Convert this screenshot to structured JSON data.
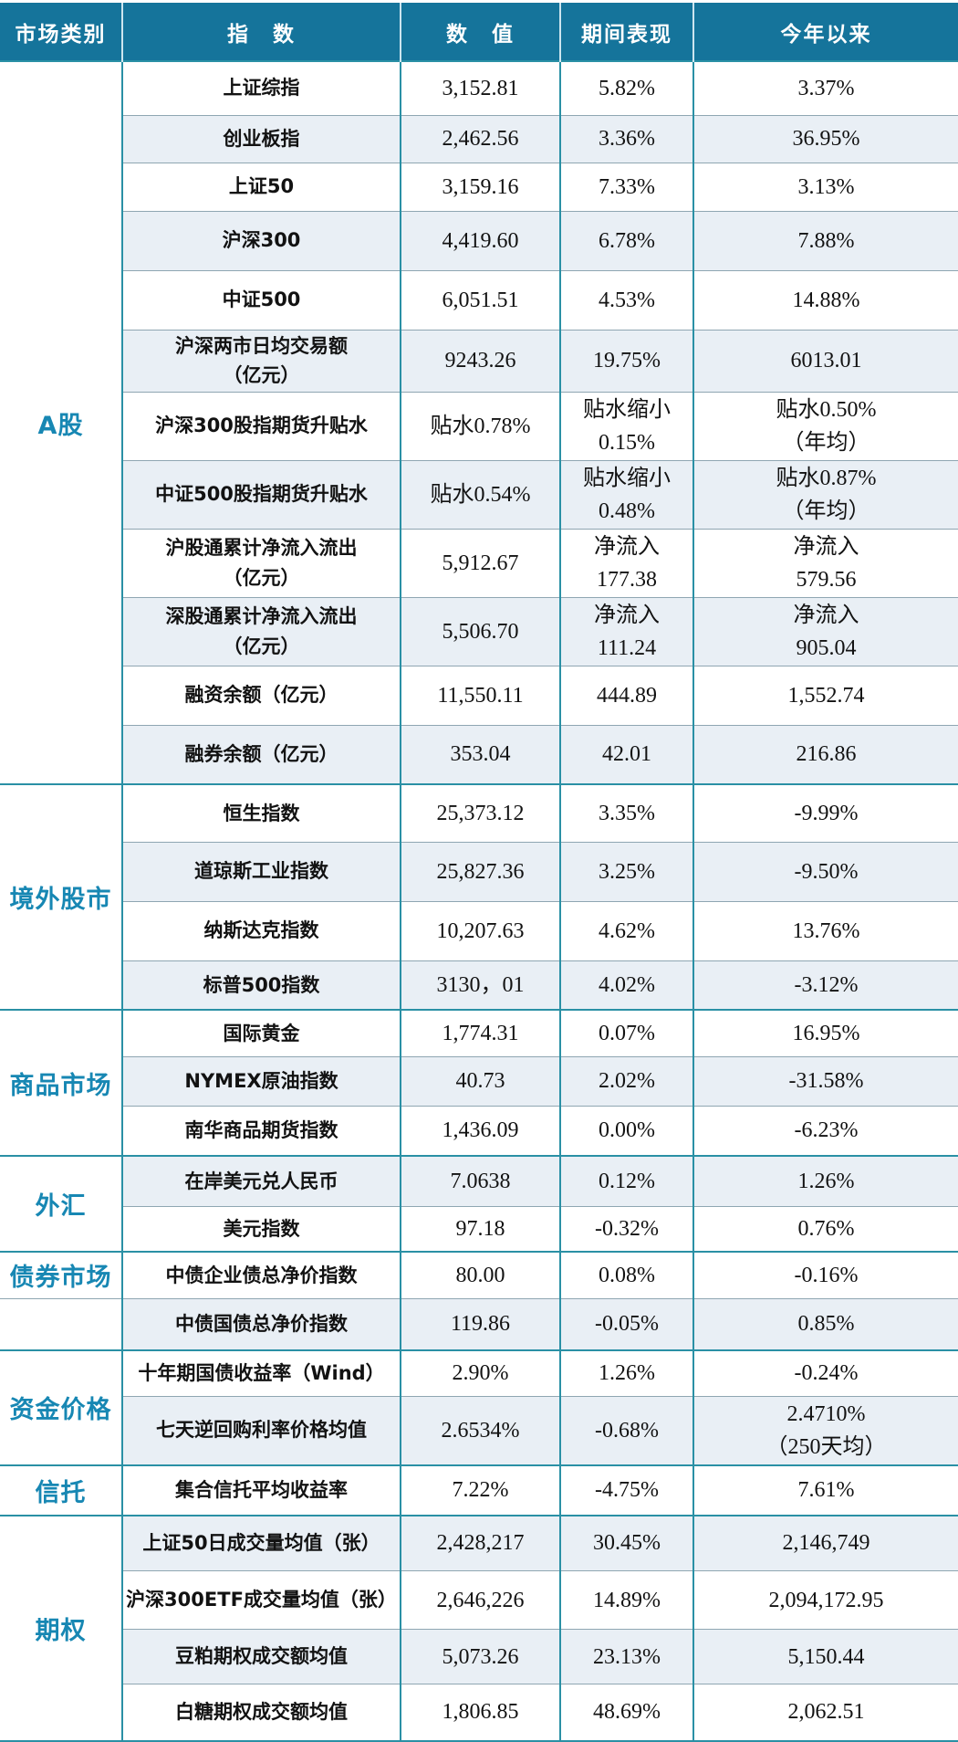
{
  "header": {
    "category": "市场类别",
    "index": "指　数",
    "value": "数　值",
    "period": "期间表现",
    "ytd": "今年以来"
  },
  "colors": {
    "header_bg": "#15749b",
    "accent_line": "#2a90a5",
    "category_text": "#1787b3",
    "shaded_row_bg": "#e9eff5",
    "row_separator": "#8fa6b2",
    "header_text": "#ffffff",
    "cell_text": "#121212"
  },
  "sections": [
    {
      "category": "A股",
      "rows": [
        {
          "index": "上证综指",
          "value": "3,152.81",
          "period": "5.82%",
          "ytd": "3.37%"
        },
        {
          "index": "创业板指",
          "value": "2,462.56",
          "period": "3.36%",
          "ytd": "36.95%"
        },
        {
          "index": "上证50",
          "value": "3,159.16",
          "period": "7.33%",
          "ytd": "3.13%"
        },
        {
          "index": "沪深300",
          "value": "4,419.60",
          "period": "6.78%",
          "ytd": "7.88%"
        },
        {
          "index": "中证500",
          "value": "6,051.51",
          "period": "4.53%",
          "ytd": "14.88%"
        },
        {
          "index": "沪深两市日均交易额\n（亿元）",
          "value": "9243.26",
          "period": "19.75%",
          "ytd": "6013.01"
        },
        {
          "index": "沪深300股指期货升贴水",
          "value": "贴水0.78%",
          "period": "贴水缩小\n0.15%",
          "ytd": "贴水0.50%\n（年均）"
        },
        {
          "index": "中证500股指期货升贴水",
          "value": "贴水0.54%",
          "period": "贴水缩小\n0.48%",
          "ytd": "贴水0.87%\n（年均）"
        },
        {
          "index": "沪股通累计净流入流出\n（亿元）",
          "value": "5,912.67",
          "period": "净流入\n177.38",
          "ytd": "净流入\n579.56"
        },
        {
          "index": "深股通累计净流入流出\n（亿元）",
          "value": "5,506.70",
          "period": "净流入\n111.24",
          "ytd": "净流入\n905.04"
        },
        {
          "index": "融资余额（亿元）",
          "value": "11,550.11",
          "period": "444.89",
          "ytd": "1,552.74"
        },
        {
          "index": "融券余额（亿元）",
          "value": "353.04",
          "period": "42.01",
          "ytd": "216.86"
        }
      ]
    },
    {
      "category": "境外股市",
      "rows": [
        {
          "index": "恒生指数",
          "value": "25,373.12",
          "period": "3.35%",
          "ytd": "-9.99%"
        },
        {
          "index": "道琼斯工业指数",
          "value": "25,827.36",
          "period": "3.25%",
          "ytd": "-9.50%"
        },
        {
          "index": "纳斯达克指数",
          "value": "10,207.63",
          "period": "4.62%",
          "ytd": "13.76%"
        },
        {
          "index": "标普500指数",
          "value": "3130，01",
          "period": "4.02%",
          "ytd": "-3.12%"
        }
      ]
    },
    {
      "category": "商品市场",
      "rows": [
        {
          "index": "国际黄金",
          "value": "1,774.31",
          "period": "0.07%",
          "ytd": "16.95%"
        },
        {
          "index": "NYMEX原油指数",
          "value": "40.73",
          "period": "2.02%",
          "ytd": "-31.58%"
        },
        {
          "index": "南华商品期货指数",
          "value": "1,436.09",
          "period": "0.00%",
          "ytd": "-6.23%"
        }
      ]
    },
    {
      "category": "外汇",
      "rows": [
        {
          "index": "在岸美元兑人民币",
          "value": "7.0638",
          "period": "0.12%",
          "ytd": "1.26%"
        },
        {
          "index": "美元指数",
          "value": "97.18",
          "period": "-0.32%",
          "ytd": "0.76%"
        }
      ]
    },
    {
      "category": "债券市场",
      "split_category": true,
      "rows": [
        {
          "index": "中债企业债总净价指数",
          "value": "80.00",
          "period": "0.08%",
          "ytd": "-0.16%"
        },
        {
          "index": "中债国债总净价指数",
          "value": "119.86",
          "period": "-0.05%",
          "ytd": "0.85%"
        }
      ]
    },
    {
      "category": "资金价格",
      "rows": [
        {
          "index": "十年期国债收益率（Wind）",
          "value": "2.90%",
          "period": "1.26%",
          "ytd": "-0.24%"
        },
        {
          "index": "七天逆回购利率价格均值",
          "value": "2.6534%",
          "period": "-0.68%",
          "ytd": "2.4710%\n（250天均）"
        }
      ]
    },
    {
      "category": "信托",
      "rows": [
        {
          "index": "集合信托平均收益率",
          "value": "7.22%",
          "period": "-4.75%",
          "ytd": "7.61%"
        }
      ]
    },
    {
      "category": "期权",
      "rows": [
        {
          "index": "上证50日成交量均值（张）",
          "value": "2,428,217",
          "period": "30.45%",
          "ytd": "2,146,749"
        },
        {
          "index": "沪深300ETF成交量均值（张）",
          "value": "2,646,226",
          "period": "14.89%",
          "ytd": "2,094,172.95"
        },
        {
          "index": "豆粕期权成交额均值",
          "value": "5,073.26",
          "period": "23.13%",
          "ytd": "5,150.44"
        },
        {
          "index": "白糖期权成交额均值",
          "value": "1,806.85",
          "period": "48.69%",
          "ytd": "2,062.51"
        }
      ]
    }
  ],
  "chart_data": {
    "type": "table",
    "title": "",
    "columns": [
      "市场类别",
      "指　数",
      "数　值",
      "期间表现",
      "今年以来"
    ],
    "rows": [
      [
        "A股",
        "上证综指",
        "3,152.81",
        "5.82%",
        "3.37%"
      ],
      [
        "A股",
        "创业板指",
        "2,462.56",
        "3.36%",
        "36.95%"
      ],
      [
        "A股",
        "上证50",
        "3,159.16",
        "7.33%",
        "3.13%"
      ],
      [
        "A股",
        "沪深300",
        "4,419.60",
        "6.78%",
        "7.88%"
      ],
      [
        "A股",
        "中证500",
        "6,051.51",
        "4.53%",
        "14.88%"
      ],
      [
        "A股",
        "沪深两市日均交易额（亿元）",
        "9243.26",
        "19.75%",
        "6013.01"
      ],
      [
        "A股",
        "沪深300股指期货升贴水",
        "贴水0.78%",
        "贴水缩小 0.15%",
        "贴水0.50%（年均）"
      ],
      [
        "A股",
        "中证500股指期货升贴水",
        "贴水0.54%",
        "贴水缩小 0.48%",
        "贴水0.87%（年均）"
      ],
      [
        "A股",
        "沪股通累计净流入流出（亿元）",
        "5,912.67",
        "净流入 177.38",
        "净流入 579.56"
      ],
      [
        "A股",
        "深股通累计净流入流出（亿元）",
        "5,506.70",
        "净流入 111.24",
        "净流入 905.04"
      ],
      [
        "A股",
        "融资余额（亿元）",
        "11,550.11",
        "444.89",
        "1,552.74"
      ],
      [
        "A股",
        "融券余额（亿元）",
        "353.04",
        "42.01",
        "216.86"
      ],
      [
        "境外股市",
        "恒生指数",
        "25,373.12",
        "3.35%",
        "-9.99%"
      ],
      [
        "境外股市",
        "道琼斯工业指数",
        "25,827.36",
        "3.25%",
        "-9.50%"
      ],
      [
        "境外股市",
        "纳斯达克指数",
        "10,207.63",
        "4.62%",
        "13.76%"
      ],
      [
        "境外股市",
        "标普500指数",
        "3130，01",
        "4.02%",
        "-3.12%"
      ],
      [
        "商品市场",
        "国际黄金",
        "1,774.31",
        "0.07%",
        "16.95%"
      ],
      [
        "商品市场",
        "NYMEX原油指数",
        "40.73",
        "2.02%",
        "-31.58%"
      ],
      [
        "商品市场",
        "南华商品期货指数",
        "1,436.09",
        "0.00%",
        "-6.23%"
      ],
      [
        "外汇",
        "在岸美元兑人民币",
        "7.0638",
        "0.12%",
        "1.26%"
      ],
      [
        "外汇",
        "美元指数",
        "97.18",
        "-0.32%",
        "0.76%"
      ],
      [
        "债券市场",
        "中债企业债总净价指数",
        "80.00",
        "0.08%",
        "-0.16%"
      ],
      [
        "债券市场",
        "中债国债总净价指数",
        "119.86",
        "-0.05%",
        "0.85%"
      ],
      [
        "资金价格",
        "十年期国债收益率（Wind）",
        "2.90%",
        "1.26%",
        "-0.24%"
      ],
      [
        "资金价格",
        "七天逆回购利率价格均值",
        "2.6534%",
        "-0.68%",
        "2.4710%（250天均）"
      ],
      [
        "信托",
        "集合信托平均收益率",
        "7.22%",
        "-4.75%",
        "7.61%"
      ],
      [
        "期权",
        "上证50日成交量均值（张）",
        "2,428,217",
        "30.45%",
        "2,146,749"
      ],
      [
        "期权",
        "沪深300ETF成交量均值（张）",
        "2,646,226",
        "14.89%",
        "2,094,172.95"
      ],
      [
        "期权",
        "豆粕期权成交额均值",
        "5,073.26",
        "23.13%",
        "5,150.44"
      ],
      [
        "期权",
        "白糖期权成交额均值",
        "1,806.85",
        "48.69%",
        "2,062.51"
      ]
    ]
  }
}
